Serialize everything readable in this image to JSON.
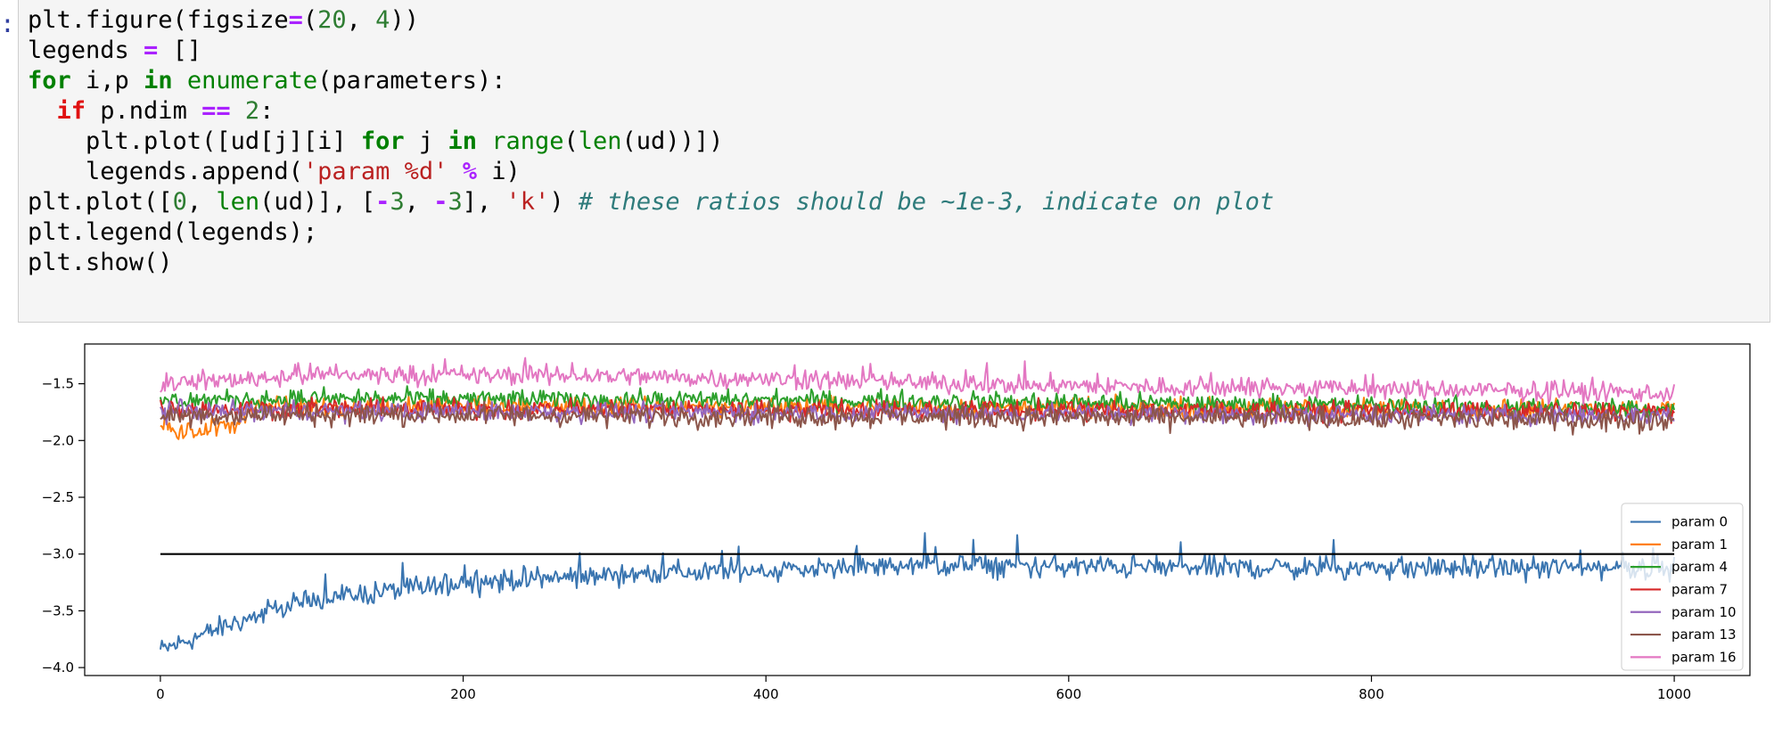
{
  "cell": {
    "prompt": ":",
    "lines": [
      [
        {
          "t": "plt.figure(figsize"
        },
        {
          "t": "=",
          "c": "op"
        },
        {
          "t": "("
        },
        {
          "t": "20",
          "c": "num"
        },
        {
          "t": ", "
        },
        {
          "t": "4",
          "c": "num"
        },
        {
          "t": "))"
        }
      ],
      [
        {
          "t": "legends "
        },
        {
          "t": "=",
          "c": "op"
        },
        {
          "t": " []"
        }
      ],
      [
        {
          "t": "for",
          "c": "kw"
        },
        {
          "t": " i,p "
        },
        {
          "t": "in",
          "c": "kw"
        },
        {
          "t": " "
        },
        {
          "t": "enumerate",
          "c": "bi"
        },
        {
          "t": "(parameters):"
        }
      ],
      [
        {
          "t": "  "
        },
        {
          "t": "if",
          "c": "kw-red"
        },
        {
          "t": " p.ndim "
        },
        {
          "t": "==",
          "c": "op"
        },
        {
          "t": " "
        },
        {
          "t": "2",
          "c": "num"
        },
        {
          "t": ":"
        }
      ],
      [
        {
          "t": "    plt.plot([ud[j][i] "
        },
        {
          "t": "for",
          "c": "kw"
        },
        {
          "t": " j "
        },
        {
          "t": "in",
          "c": "kw"
        },
        {
          "t": " "
        },
        {
          "t": "range",
          "c": "bi"
        },
        {
          "t": "("
        },
        {
          "t": "len",
          "c": "bi"
        },
        {
          "t": "(ud))])"
        }
      ],
      [
        {
          "t": "    legends.append("
        },
        {
          "t": "'param %d'",
          "c": "str"
        },
        {
          "t": " "
        },
        {
          "t": "%",
          "c": "op"
        },
        {
          "t": " i)"
        }
      ],
      [
        {
          "t": "plt.plot(["
        },
        {
          "t": "0",
          "c": "num"
        },
        {
          "t": ", "
        },
        {
          "t": "len",
          "c": "bi"
        },
        {
          "t": "(ud)], ["
        },
        {
          "t": "-",
          "c": "op"
        },
        {
          "t": "3",
          "c": "num"
        },
        {
          "t": ", "
        },
        {
          "t": "-",
          "c": "op"
        },
        {
          "t": "3",
          "c": "num"
        },
        {
          "t": "], "
        },
        {
          "t": "'k'",
          "c": "str"
        },
        {
          "t": ") "
        },
        {
          "t": "# these ratios should be ~1e-3, indicate on plot",
          "c": "cm"
        }
      ],
      [
        {
          "t": "plt.legend(legends);"
        }
      ],
      [
        {
          "t": "plt.show()"
        }
      ]
    ]
  },
  "colors": {
    "param 0": "#3a75b0",
    "param 1": "#ff7f0e",
    "param 4": "#2ca02c",
    "param 7": "#d62728",
    "param 10": "#9467bd",
    "param 13": "#8c564b",
    "param 16": "#e377c2"
  },
  "chart_data": {
    "type": "line",
    "x_range": [
      0,
      1000
    ],
    "xlim": [
      -50,
      1050
    ],
    "ylim": [
      -4.07,
      -1.15
    ],
    "x_ticks": [
      "0",
      "200",
      "400",
      "600",
      "800",
      "1000"
    ],
    "x_tick_values": [
      0,
      200,
      400,
      600,
      800,
      1000
    ],
    "y_ticks": [
      "−1.5",
      "−2.0",
      "−2.5",
      "−3.0",
      "−3.5",
      "−4.0"
    ],
    "y_tick_values": [
      -1.5,
      -2.0,
      -2.5,
      -3.0,
      -3.5,
      -4.0
    ],
    "legend_position": "lower-right",
    "series": [
      {
        "name": "param 0",
        "approx_trend": {
          "x": [
            0,
            50,
            100,
            200,
            300,
            500,
            700,
            1000
          ],
          "y": [
            -3.85,
            -3.6,
            -3.4,
            -3.25,
            -3.18,
            -3.1,
            -3.12,
            -3.12
          ]
        },
        "noise": 0.07
      },
      {
        "name": "param 1",
        "approx_trend": {
          "x": [
            0,
            10,
            50,
            60,
            300,
            1000
          ],
          "y": [
            -1.8,
            -1.95,
            -1.85,
            -1.7,
            -1.7,
            -1.72
          ]
        },
        "noise": 0.06
      },
      {
        "name": "param 4",
        "approx_trend": {
          "x": [
            0,
            100,
            500,
            1000
          ],
          "y": [
            -1.65,
            -1.63,
            -1.65,
            -1.72
          ]
        },
        "noise": 0.06
      },
      {
        "name": "param 7",
        "approx_trend": {
          "x": [
            0,
            100,
            500,
            1000
          ],
          "y": [
            -1.72,
            -1.72,
            -1.73,
            -1.75
          ]
        },
        "noise": 0.06
      },
      {
        "name": "param 10",
        "approx_trend": {
          "x": [
            0,
            100,
            500,
            1000
          ],
          "y": [
            -1.74,
            -1.74,
            -1.76,
            -1.78
          ]
        },
        "noise": 0.06
      },
      {
        "name": "param 13",
        "approx_trend": {
          "x": [
            0,
            100,
            500,
            1000
          ],
          "y": [
            -1.78,
            -1.77,
            -1.79,
            -1.82
          ]
        },
        "noise": 0.07
      },
      {
        "name": "param 16",
        "approx_trend": {
          "x": [
            0,
            100,
            300,
            600,
            1000
          ],
          "y": [
            -1.5,
            -1.42,
            -1.43,
            -1.52,
            -1.58
          ]
        },
        "noise": 0.06
      }
    ],
    "reference_line": {
      "x": [
        0,
        1000
      ],
      "y": [
        -3,
        -3
      ],
      "color": "#000000"
    }
  }
}
